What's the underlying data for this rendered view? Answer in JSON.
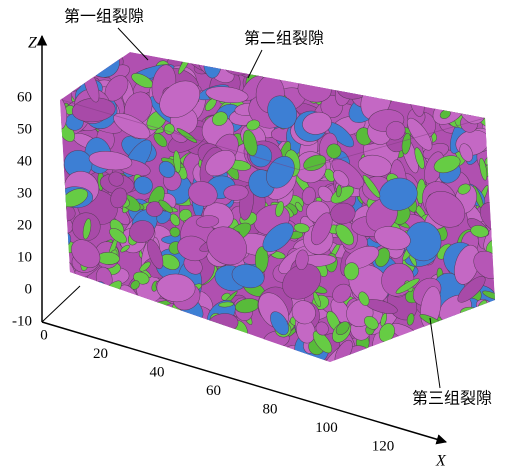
{
  "annotations": [
    "第一组裂隙",
    "第二组裂隙",
    "第三组裂隙"
  ],
  "axes": {
    "z": {
      "label": "Z",
      "ticks": [
        60,
        50,
        40,
        30,
        20,
        10,
        0,
        -10
      ]
    },
    "x": {
      "label": "X",
      "ticks": [
        0,
        20,
        40,
        60,
        80,
        100,
        120
      ]
    }
  }
}
